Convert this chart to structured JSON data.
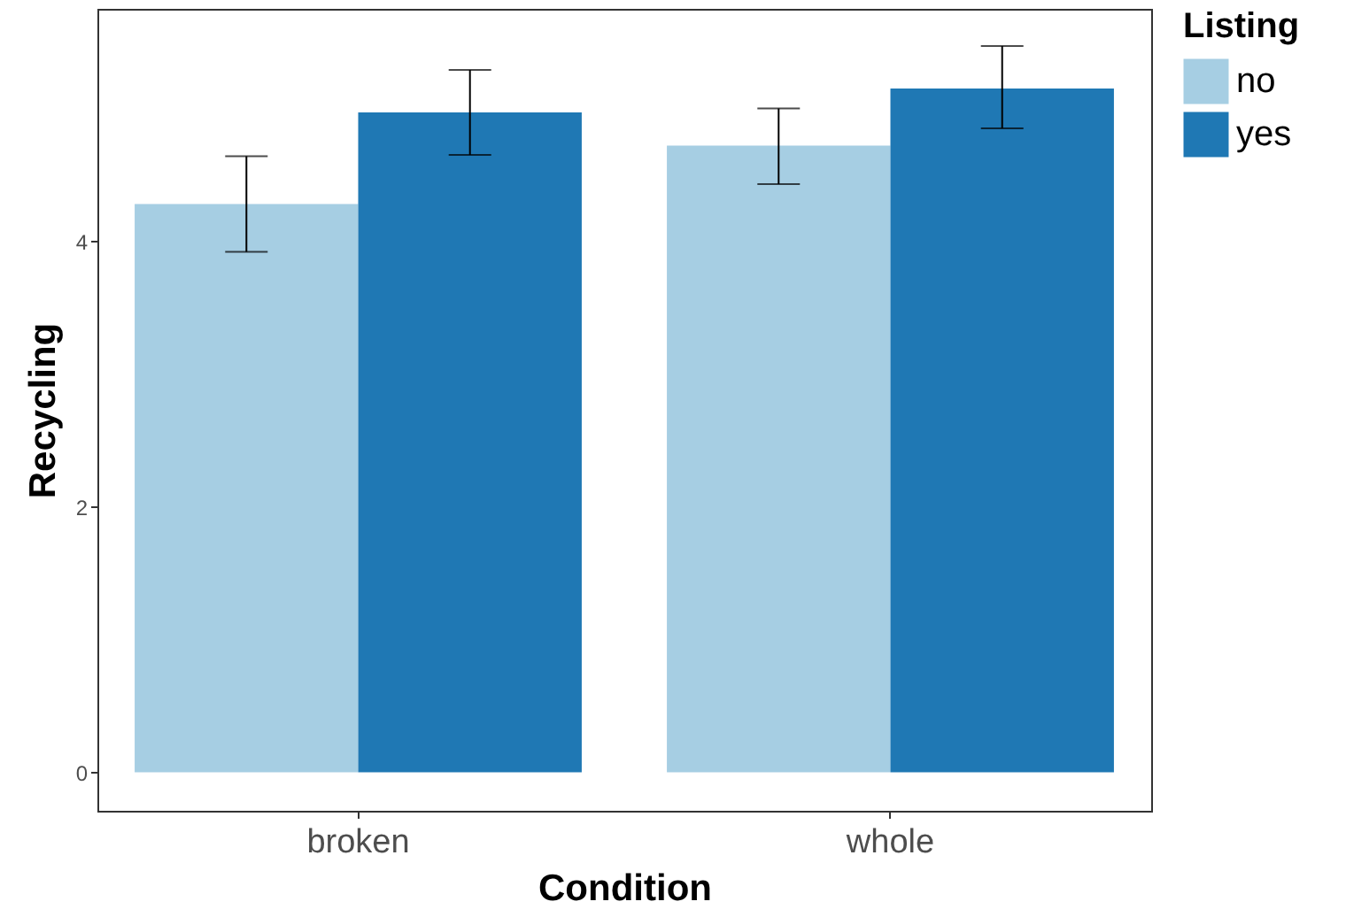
{
  "chart_data": {
    "type": "bar",
    "xlabel": "Condition",
    "ylabel": "Recycling",
    "legend_title": "Listing",
    "categories": [
      "broken",
      "whole"
    ],
    "series": [
      {
        "name": "no",
        "color": "#a6cee3",
        "values": [
          4.28,
          4.72
        ],
        "errors": [
          [
            3.92,
            4.64
          ],
          [
            4.43,
            5.0
          ]
        ]
      },
      {
        "name": "yes",
        "color": "#1f78b4",
        "values": [
          4.97,
          5.15
        ],
        "errors": [
          [
            4.65,
            5.29
          ],
          [
            4.85,
            5.47
          ]
        ]
      }
    ],
    "ylim": [
      -0.29,
      5.75
    ],
    "yticks": [
      0,
      2,
      4
    ],
    "grid": false,
    "legend": "right"
  }
}
